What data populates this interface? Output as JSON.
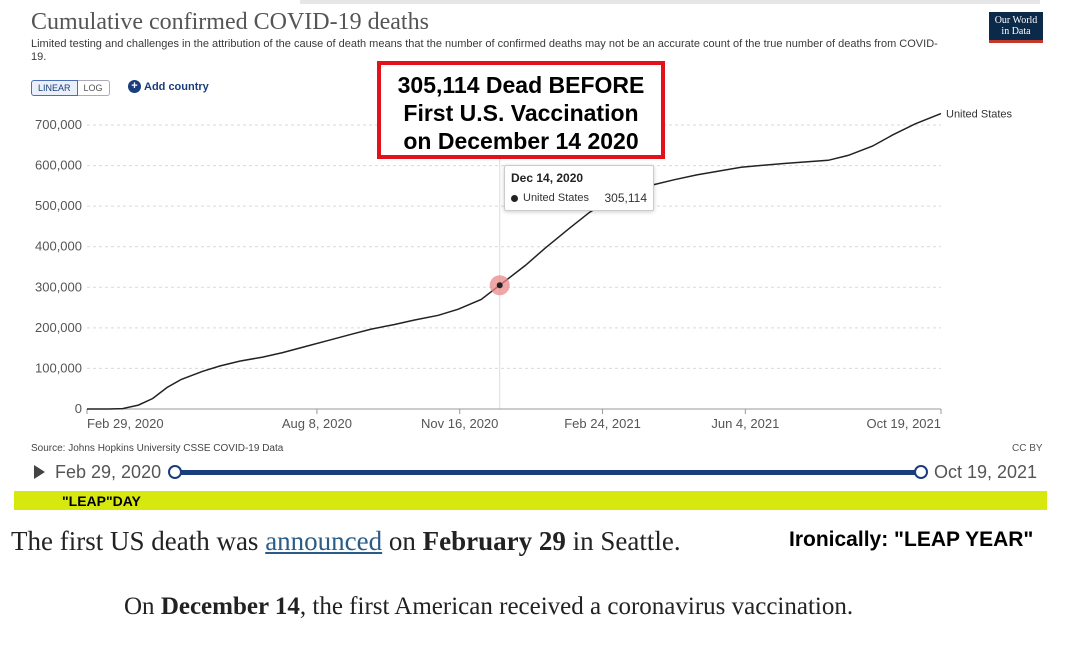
{
  "header": {
    "title": "Cumulative confirmed COVID-19 deaths",
    "subtitle": "Limited testing and challenges in the attribution of the cause of death means that the number of confirmed deaths may not be an accurate count of the true number of deaths from COVID-19.",
    "logo_text_1": "Our World",
    "logo_text_2": "in Data"
  },
  "controls": {
    "linear_label": "LINEAR",
    "log_label": "LOG",
    "add_country_label": "Add country"
  },
  "callout": {
    "line1": "305,114 Dead BEFORE",
    "line2": "First U.S. Vaccination",
    "line3": "on December 14 2020",
    "border_color": "#e3121a"
  },
  "tooltip": {
    "date": "Dec 14, 2020",
    "series": "United States",
    "value": "305,114"
  },
  "footer": {
    "source": "Source: Johns Hopkins University CSSE COVID-19 Data",
    "license": "CC BY"
  },
  "timeline": {
    "start": "Feb 29, 2020",
    "end": "Oct 19, 2021"
  },
  "annotation": {
    "leap_day": "\"LEAP\"DAY",
    "leap_color": "#d7e80f",
    "ironic": "Ironically: \"LEAP YEAR\""
  },
  "text": {
    "s1_pre": "The first US death was ",
    "s1_link": "announced",
    "s1_mid": " on ",
    "s1_bold": "February 29",
    "s1_post": " in Seattle.",
    "s2_pre": "On ",
    "s2_bold": "December 14",
    "s2_post": ", the first American received a coronavirus vaccination."
  },
  "chart_data": {
    "type": "line",
    "title": "Cumulative confirmed COVID-19 deaths",
    "xlabel": "",
    "ylabel": "",
    "x_ticks": [
      "Feb 29, 2020",
      "Aug 8, 2020",
      "Nov 16, 2020",
      "Feb 24, 2021",
      "Jun 4, 2021",
      "Oct 19, 2021"
    ],
    "y_ticks": [
      "0",
      "100,000",
      "200,000",
      "300,000",
      "400,000",
      "500,000",
      "600,000",
      "700,000"
    ],
    "ylim": [
      0,
      700000
    ],
    "xlim": [
      "2020-02-29",
      "2021-10-19"
    ],
    "grid": true,
    "line_color": "#222222",
    "highlight": {
      "x": "2020-12-14",
      "y": 305114,
      "color": "#e8888a"
    },
    "series": [
      {
        "name": "United States",
        "x": [
          "2020-02-29",
          "2020-03-15",
          "2020-03-25",
          "2020-04-05",
          "2020-04-15",
          "2020-04-25",
          "2020-05-05",
          "2020-05-20",
          "2020-06-01",
          "2020-06-15",
          "2020-07-01",
          "2020-07-15",
          "2020-08-01",
          "2020-08-15",
          "2020-09-01",
          "2020-09-15",
          "2020-10-01",
          "2020-10-15",
          "2020-11-01",
          "2020-11-15",
          "2020-12-01",
          "2020-12-14",
          "2021-01-01",
          "2021-01-15",
          "2021-02-01",
          "2021-02-15",
          "2021-03-01",
          "2021-03-15",
          "2021-04-01",
          "2021-04-15",
          "2021-05-01",
          "2021-06-01",
          "2021-07-01",
          "2021-08-01",
          "2021-08-15",
          "2021-09-01",
          "2021-09-15",
          "2021-10-01",
          "2021-10-19"
        ],
        "values": [
          1,
          70,
          1000,
          9500,
          26000,
          53000,
          73000,
          93000,
          106000,
          118000,
          128000,
          139000,
          155000,
          168000,
          184000,
          197000,
          208000,
          219000,
          231000,
          246000,
          270000,
          305114,
          354000,
          397000,
          446000,
          485000,
          515000,
          535000,
          553000,
          565000,
          577000,
          596000,
          605000,
          613000,
          625000,
          648000,
          675000,
          703000,
          728000
        ]
      }
    ]
  }
}
